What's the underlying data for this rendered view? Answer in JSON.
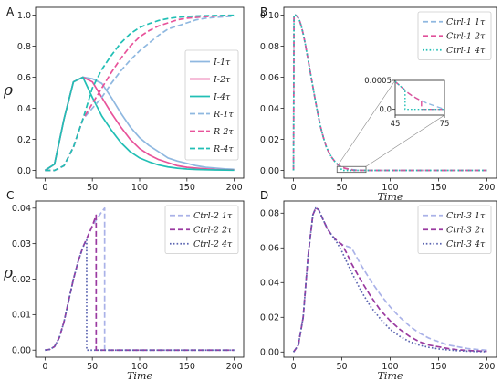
{
  "chart_data": [
    {
      "panel": "A",
      "type": "line",
      "xlabel": "",
      "ylabel": "ρ",
      "xlim": [
        -10,
        210
      ],
      "ylim": [
        -0.05,
        1.05
      ],
      "xticks": [
        0,
        50,
        100,
        150,
        200
      ],
      "yticks": [
        0.0,
        0.2,
        0.4,
        0.6,
        0.8,
        1.0
      ],
      "ytick_labels": [
        "0.0",
        "0.2",
        "0.4",
        "0.6",
        "0.8",
        "1.0"
      ],
      "legend": "right",
      "series": [
        {
          "name": "I-1τ",
          "color": "#8fb8e0",
          "dash": "solid",
          "x": [
            0,
            10,
            20,
            30,
            40,
            50,
            60,
            70,
            80,
            90,
            100,
            110,
            120,
            130,
            140,
            150,
            160,
            170,
            180,
            190,
            200
          ],
          "y": [
            0.0,
            0.04,
            0.33,
            0.57,
            0.6,
            0.59,
            0.56,
            0.47,
            0.37,
            0.28,
            0.21,
            0.16,
            0.12,
            0.08,
            0.06,
            0.045,
            0.03,
            0.02,
            0.015,
            0.01,
            0.007
          ]
        },
        {
          "name": "I-2τ",
          "color": "#e8539a",
          "dash": "solid",
          "x": [
            0,
            10,
            20,
            30,
            40,
            50,
            60,
            70,
            80,
            90,
            100,
            110,
            120,
            130,
            140,
            150,
            160,
            170,
            180,
            190,
            200
          ],
          "y": [
            0.0,
            0.04,
            0.33,
            0.57,
            0.6,
            0.57,
            0.47,
            0.37,
            0.28,
            0.2,
            0.14,
            0.1,
            0.07,
            0.05,
            0.03,
            0.02,
            0.015,
            0.01,
            0.006,
            0.004,
            0.003
          ]
        },
        {
          "name": "I-4τ",
          "color": "#22bfb5",
          "dash": "solid",
          "x": [
            0,
            10,
            20,
            30,
            40,
            50,
            60,
            70,
            80,
            90,
            100,
            110,
            120,
            130,
            140,
            150,
            160,
            170,
            180,
            190,
            200
          ],
          "y": [
            0.0,
            0.04,
            0.33,
            0.57,
            0.6,
            0.47,
            0.35,
            0.26,
            0.18,
            0.12,
            0.08,
            0.055,
            0.035,
            0.022,
            0.014,
            0.009,
            0.006,
            0.004,
            0.003,
            0.002,
            0.001
          ]
        },
        {
          "name": "R-1τ",
          "color": "#8fb8e0",
          "dash": "dash",
          "x": [
            0,
            10,
            20,
            30,
            40,
            50,
            60,
            70,
            80,
            90,
            100,
            110,
            120,
            130,
            140,
            150,
            160,
            170,
            180,
            190,
            200
          ],
          "y": [
            0.0,
            0.0,
            0.03,
            0.15,
            0.33,
            0.4,
            0.47,
            0.56,
            0.64,
            0.71,
            0.77,
            0.82,
            0.87,
            0.91,
            0.93,
            0.95,
            0.97,
            0.98,
            0.985,
            0.99,
            0.993
          ]
        },
        {
          "name": "R-2τ",
          "color": "#e8539a",
          "dash": "dash",
          "x": [
            0,
            10,
            20,
            30,
            40,
            50,
            60,
            70,
            80,
            90,
            100,
            110,
            120,
            130,
            140,
            150,
            160,
            170,
            180,
            190,
            200
          ],
          "y": [
            0.0,
            0.0,
            0.03,
            0.15,
            0.33,
            0.43,
            0.53,
            0.63,
            0.72,
            0.8,
            0.86,
            0.9,
            0.93,
            0.95,
            0.97,
            0.98,
            0.985,
            0.99,
            0.994,
            0.996,
            0.997
          ]
        },
        {
          "name": "R-4τ",
          "color": "#22bfb5",
          "dash": "dash",
          "x": [
            0,
            10,
            20,
            30,
            40,
            50,
            60,
            70,
            80,
            90,
            100,
            110,
            120,
            130,
            140,
            150,
            160,
            170,
            180,
            190,
            200
          ],
          "y": [
            0.0,
            0.0,
            0.03,
            0.15,
            0.33,
            0.53,
            0.65,
            0.74,
            0.82,
            0.88,
            0.92,
            0.945,
            0.965,
            0.978,
            0.986,
            0.991,
            0.994,
            0.996,
            0.997,
            0.998,
            0.999
          ]
        }
      ]
    },
    {
      "panel": "B",
      "type": "line",
      "xlabel": "Time",
      "ylabel": "",
      "xlim": [
        -10,
        210
      ],
      "ylim": [
        -0.005,
        0.105
      ],
      "xticks": [
        0,
        50,
        100,
        150,
        200
      ],
      "yticks": [
        0.0,
        0.02,
        0.04,
        0.06,
        0.08,
        0.1
      ],
      "ytick_labels": [
        "0.00",
        "0.02",
        "0.04",
        "0.06",
        "0.08",
        "0.10"
      ],
      "legend": "top-right",
      "series": [
        {
          "name": "Ctrl-1 1τ",
          "color": "#8fb8e0",
          "dash": "dash",
          "x": [
            0,
            0.5,
            2,
            4,
            6,
            8,
            10,
            12,
            14,
            16,
            18,
            20,
            22,
            25,
            28,
            31,
            34,
            37,
            40,
            43,
            46,
            50,
            55,
            60,
            65,
            70,
            75,
            80,
            100,
            150,
            200
          ],
          "y": [
            0.0,
            0.1,
            0.1,
            0.099,
            0.097,
            0.093,
            0.088,
            0.082,
            0.075,
            0.068,
            0.061,
            0.054,
            0.047,
            0.037,
            0.028,
            0.021,
            0.015,
            0.011,
            0.008,
            0.0055,
            0.0035,
            0.002,
            0.0011,
            0.0005,
            0.00025,
            0.0001,
            5e-05,
            0.0,
            0.0,
            0.0,
            0.0
          ]
        },
        {
          "name": "Ctrl-1 2τ",
          "color": "#e0509a",
          "dash": "dash",
          "x": [
            0,
            0.5,
            2,
            4,
            6,
            8,
            10,
            12,
            14,
            16,
            18,
            20,
            22,
            25,
            28,
            31,
            34,
            37,
            40,
            43,
            46,
            50,
            55,
            60,
            62,
            65,
            70,
            80,
            100,
            150,
            200
          ],
          "y": [
            0.0,
            0.1,
            0.1,
            0.099,
            0.097,
            0.093,
            0.088,
            0.082,
            0.075,
            0.068,
            0.061,
            0.054,
            0.047,
            0.037,
            0.028,
            0.021,
            0.015,
            0.011,
            0.008,
            0.0055,
            0.0035,
            0.002,
            0.0011,
            0.00045,
            0.0,
            0.0,
            0.0,
            0.0,
            0.0,
            0.0,
            0.0
          ]
        },
        {
          "name": "Ctrl-1 4τ",
          "color": "#22bfb5",
          "dash": "dot",
          "x": [
            0,
            0.5,
            2,
            4,
            6,
            8,
            10,
            12,
            14,
            16,
            18,
            20,
            22,
            25,
            28,
            31,
            34,
            37,
            40,
            43,
            46,
            48,
            50,
            52,
            55,
            60,
            70,
            80,
            100,
            150,
            200
          ],
          "y": [
            0.0,
            0.1,
            0.1,
            0.099,
            0.097,
            0.093,
            0.088,
            0.082,
            0.075,
            0.068,
            0.061,
            0.054,
            0.047,
            0.037,
            0.028,
            0.021,
            0.015,
            0.011,
            0.008,
            0.0055,
            0.0035,
            0.0025,
            0.0,
            0.0,
            0.0,
            0.0,
            0.0,
            0.0,
            0.0,
            0.0,
            0.0
          ]
        }
      ],
      "inset": {
        "xlim": [
          45,
          75
        ],
        "ylim": [
          -0.0001,
          0.0005
        ],
        "xticks": [
          45,
          75
        ],
        "yticks": [
          0.0,
          0.0005
        ],
        "ytick_labels": [
          "0.0",
          "0.0005"
        ],
        "series": [
          {
            "color": "#8fb8e0",
            "dash": "dash",
            "x": [
              45,
              47,
              49,
              51,
              53,
              55,
              58,
              61,
              64,
              67,
              70,
              73,
              75
            ],
            "y": [
              0.00048,
              0.00043,
              0.00038,
              0.00033,
              0.00028,
              0.00024,
              0.00019,
              0.00015,
              0.00011,
              8e-05,
              5e-05,
              2e-05,
              0.0
            ]
          },
          {
            "color": "#e0509a",
            "dash": "dash",
            "x": [
              45,
              47,
              49,
              51,
              53,
              55,
              58,
              60,
              61,
              61.01,
              75
            ],
            "y": [
              0.00048,
              0.00043,
              0.00038,
              0.00033,
              0.00028,
              0.00024,
              0.00019,
              0.00016,
              0.00015,
              0.0,
              0.0
            ]
          },
          {
            "color": "#22bfb5",
            "dash": "dot",
            "x": [
              45,
              47,
              49,
              51,
              51.01,
              75
            ],
            "y": [
              0.00048,
              0.00043,
              0.00038,
              0.00034,
              0.0,
              0.0
            ]
          }
        ]
      }
    },
    {
      "panel": "C",
      "type": "line",
      "xlabel": "Time",
      "ylabel": "ρ",
      "xlim": [
        -10,
        210
      ],
      "ylim": [
        -0.002,
        0.042
      ],
      "xticks": [
        0,
        50,
        100,
        150,
        200
      ],
      "yticks": [
        0.0,
        0.01,
        0.02,
        0.03,
        0.04
      ],
      "ytick_labels": [
        "0.00",
        "0.01",
        "0.02",
        "0.03",
        "0.04"
      ],
      "legend": "top-right",
      "series": [
        {
          "name": "Ctrl-2 1τ",
          "color": "#aab2e8",
          "dash": "dash",
          "x": [
            0,
            5,
            10,
            15,
            20,
            25,
            30,
            35,
            40,
            45,
            50,
            55,
            60,
            63,
            63.01,
            100,
            150,
            200
          ],
          "y": [
            0.0,
            0.0002,
            0.001,
            0.0035,
            0.008,
            0.014,
            0.02,
            0.025,
            0.029,
            0.032,
            0.035,
            0.037,
            0.039,
            0.04,
            0.0,
            0.0,
            0.0,
            0.0
          ]
        },
        {
          "name": "Ctrl-2 2τ",
          "color": "#9a3aa0",
          "dash": "dash",
          "x": [
            0,
            5,
            10,
            15,
            20,
            25,
            30,
            35,
            40,
            45,
            50,
            54,
            54.01,
            100,
            150,
            200
          ],
          "y": [
            0.0,
            0.0002,
            0.001,
            0.0035,
            0.008,
            0.014,
            0.02,
            0.025,
            0.029,
            0.032,
            0.035,
            0.038,
            0.0,
            0.0,
            0.0,
            0.0
          ]
        },
        {
          "name": "Ctrl-2 4τ",
          "color": "#5a63b0",
          "dash": "dot",
          "x": [
            0,
            5,
            10,
            15,
            20,
            25,
            30,
            35,
            40,
            44,
            44.01,
            100,
            150,
            200
          ],
          "y": [
            0.0,
            0.0002,
            0.001,
            0.0035,
            0.008,
            0.014,
            0.02,
            0.025,
            0.029,
            0.031,
            0.0,
            0.0,
            0.0,
            0.0
          ]
        }
      ]
    },
    {
      "panel": "D",
      "type": "line",
      "xlabel": "Time",
      "ylabel": "",
      "xlim": [
        -10,
        210
      ],
      "ylim": [
        -0.003,
        0.087
      ],
      "xticks": [
        0,
        50,
        100,
        150,
        200
      ],
      "yticks": [
        0.0,
        0.02,
        0.04,
        0.06,
        0.08
      ],
      "ytick_labels": [
        "0.00",
        "0.02",
        "0.04",
        "0.06",
        "0.08"
      ],
      "legend": "top-right",
      "series": [
        {
          "name": "Ctrl-3 1τ",
          "color": "#aab2e8",
          "dash": "dash",
          "x": [
            0,
            5,
            10,
            15,
            20,
            23,
            26,
            30,
            35,
            40,
            45,
            50,
            55,
            60,
            65,
            70,
            80,
            90,
            100,
            110,
            120,
            130,
            140,
            150,
            160,
            170,
            180,
            190,
            200
          ],
          "y": [
            0.0,
            0.004,
            0.02,
            0.055,
            0.079,
            0.083,
            0.082,
            0.077,
            0.071,
            0.067,
            0.064,
            0.062,
            0.061,
            0.06,
            0.055,
            0.05,
            0.041,
            0.033,
            0.026,
            0.02,
            0.015,
            0.011,
            0.008,
            0.006,
            0.004,
            0.003,
            0.002,
            0.0015,
            0.001
          ]
        },
        {
          "name": "Ctrl-3 2τ",
          "color": "#9a3aa0",
          "dash": "dash",
          "x": [
            0,
            5,
            10,
            15,
            20,
            23,
            26,
            30,
            35,
            40,
            45,
            50,
            55,
            60,
            70,
            80,
            90,
            100,
            110,
            120,
            130,
            140,
            150,
            160,
            170,
            180,
            190,
            200
          ],
          "y": [
            0.0,
            0.004,
            0.02,
            0.055,
            0.079,
            0.083,
            0.082,
            0.077,
            0.071,
            0.067,
            0.064,
            0.062,
            0.057,
            0.051,
            0.041,
            0.032,
            0.024,
            0.018,
            0.013,
            0.009,
            0.006,
            0.004,
            0.003,
            0.002,
            0.0013,
            0.0009,
            0.0006,
            0.0004
          ]
        },
        {
          "name": "Ctrl-3 4τ",
          "color": "#5a63b0",
          "dash": "dot",
          "x": [
            0,
            5,
            10,
            15,
            20,
            23,
            26,
            30,
            35,
            40,
            45,
            50,
            60,
            70,
            80,
            90,
            100,
            110,
            120,
            130,
            140,
            150,
            160,
            170,
            180,
            190,
            200
          ],
          "y": [
            0.0,
            0.004,
            0.02,
            0.055,
            0.079,
            0.083,
            0.082,
            0.077,
            0.071,
            0.067,
            0.063,
            0.058,
            0.046,
            0.035,
            0.026,
            0.019,
            0.013,
            0.009,
            0.006,
            0.004,
            0.0027,
            0.0018,
            0.0012,
            0.0008,
            0.0005,
            0.0003,
            0.0002
          ]
        }
      ]
    }
  ]
}
